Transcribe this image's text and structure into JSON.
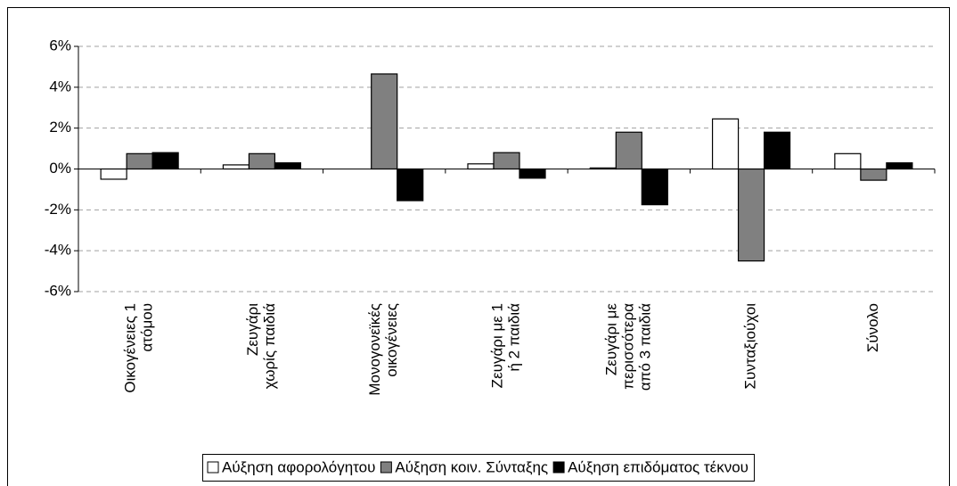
{
  "chart_data": {
    "type": "bar",
    "categories": [
      [
        "Οικογένειες 1",
        "ατόμου"
      ],
      [
        "Ζευγάρι",
        "χωρίς παιδιά"
      ],
      [
        "Μονογονεϊκές",
        "οικογένειες"
      ],
      [
        "Ζευγάρι με 1",
        "ή 2 παιδιά"
      ],
      [
        "Ζευγάρι με",
        "περισσότερα",
        "από 3 παιδιά"
      ],
      [
        "Συνταξιούχοι"
      ],
      [
        "Σύνολο"
      ]
    ],
    "series": [
      {
        "name": "Αύξηση αφορολόγητου",
        "color": "#ffffff",
        "values": [
          -0.5,
          0.2,
          0,
          0.25,
          0.05,
          2.45,
          0.75
        ]
      },
      {
        "name": "Αύξηση κοιν. Σύνταξης",
        "color": "#808080",
        "values": [
          0.75,
          0.75,
          4.65,
          0.8,
          1.8,
          -4.5,
          -0.55
        ]
      },
      {
        "name": "Αύξηση επιδόματος τέκνου",
        "color": "#000000",
        "values": [
          0.8,
          0.3,
          -1.55,
          -0.45,
          -1.75,
          1.8,
          0.3
        ]
      }
    ],
    "ylim": [
      -6,
      6
    ],
    "yticks": [
      {
        "value": -6,
        "label": "-6%"
      },
      {
        "value": -4,
        "label": "-4%"
      },
      {
        "value": -2,
        "label": "-2%"
      },
      {
        "value": 0,
        "label": "0%"
      },
      {
        "value": 2,
        "label": "2%"
      },
      {
        "value": 4,
        "label": "4%"
      },
      {
        "value": 6,
        "label": "6%"
      }
    ],
    "grid": true,
    "legend": "bottom"
  }
}
